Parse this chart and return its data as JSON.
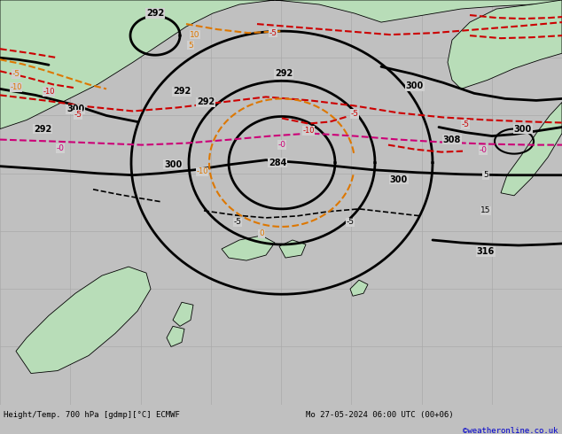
{
  "title_left": "Height/Temp. 700 hPa [gdmp][°C] ECMWF",
  "title_right": "Mo 27-05-2024 06:00 UTC (00+06)",
  "copyright": "©weatheronline.co.uk",
  "ocean_color": "#d0d0d0",
  "land_color": "#b8ddb8",
  "grid_color": "#aaaaaa",
  "bottom_color": "#c0c0c0",
  "black": "#000000",
  "red": "#cc0000",
  "orange": "#dd7700",
  "magenta": "#cc0077",
  "blue_copy": "#0000cc",
  "fig_w": 6.34,
  "fig_h": 4.9,
  "dpi": 100
}
